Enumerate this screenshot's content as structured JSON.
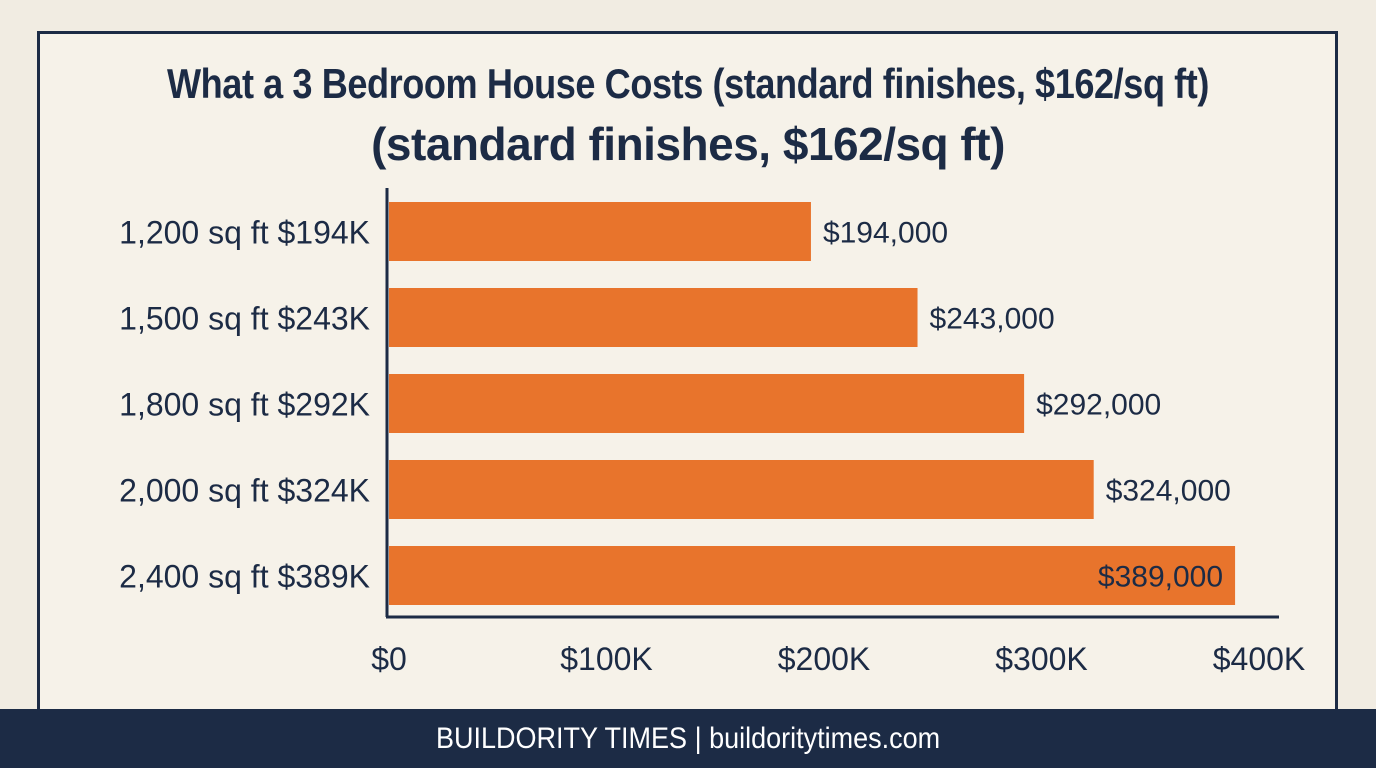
{
  "chart_data": {
    "type": "bar",
    "orientation": "horizontal",
    "title_line1": "What a 3 Bedroom House Costs (standard finishes, $162/sq ft)",
    "title_line2": "(standard finishes, $162/sq ft)",
    "categories": [
      "1,200 sq ft  $194K",
      "1,500 sq ft  $243K",
      "1,800 sq ft  $292K",
      "2,000 sq ft  $324K",
      "2,400 sq ft  $389K"
    ],
    "values": [
      194000,
      243000,
      292000,
      324000,
      389000
    ],
    "value_labels": [
      "$194,000",
      "$243,000",
      "$292,000",
      "$324,000",
      "$389,000"
    ],
    "x_ticks": [
      0,
      100000,
      200000,
      300000,
      400000
    ],
    "x_tick_labels": [
      "$0",
      "$100K",
      "$200K",
      "$300K",
      "$400K"
    ],
    "xlim": [
      0,
      400000
    ],
    "grid": false,
    "colors": {
      "bar": "#e8742c",
      "text": "#1c2b45",
      "background": "#f6f2e9"
    }
  },
  "footer": {
    "text": "BUILDORITY TIMES | buildoritytimes.com"
  }
}
